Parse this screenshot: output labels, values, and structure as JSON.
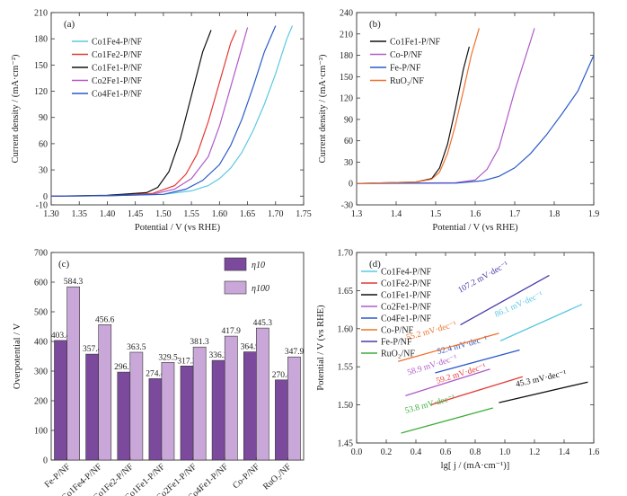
{
  "chart_data": [
    {
      "panel": "a",
      "type": "line",
      "panel_label": "(a)",
      "xlabel": "Potential / V (vs RHE)",
      "ylabel": "Current density / (mA·cm⁻²)",
      "xlim": [
        1.3,
        1.75
      ],
      "ylim": [
        -10,
        210
      ],
      "xticks": [
        "1.30",
        "1.35",
        "1.40",
        "1.45",
        "1.50",
        "1.55",
        "1.60",
        "1.65",
        "1.70",
        "1.75"
      ],
      "yticks": [
        "-10",
        "0",
        "30",
        "60",
        "90",
        "120",
        "150",
        "180",
        "210"
      ],
      "legend_position": "top-left",
      "series": [
        {
          "name": "Co1Fe4-P/NF",
          "color": "#5bc8e0",
          "x": [
            1.3,
            1.4,
            1.5,
            1.55,
            1.58,
            1.6,
            1.62,
            1.64,
            1.66,
            1.68,
            1.7,
            1.72,
            1.73
          ],
          "y": [
            0,
            0.5,
            2,
            6,
            12,
            20,
            32,
            50,
            75,
            105,
            140,
            180,
            195
          ]
        },
        {
          "name": "Co1Fe2-P/NF",
          "color": "#e53935",
          "x": [
            1.3,
            1.4,
            1.48,
            1.52,
            1.54,
            1.56,
            1.58,
            1.6,
            1.62,
            1.63
          ],
          "y": [
            0,
            0.5,
            3,
            12,
            25,
            48,
            85,
            130,
            175,
            190
          ]
        },
        {
          "name": "Co1Fe1-P/NF",
          "color": "#111111",
          "x": [
            1.3,
            1.4,
            1.47,
            1.49,
            1.51,
            1.53,
            1.55,
            1.57,
            1.585
          ],
          "y": [
            0,
            1,
            4,
            10,
            28,
            65,
            115,
            165,
            190
          ]
        },
        {
          "name": "Co2Fe1-P/NF",
          "color": "#b05ac8",
          "x": [
            1.3,
            1.4,
            1.48,
            1.52,
            1.55,
            1.58,
            1.6,
            1.62,
            1.64,
            1.65
          ],
          "y": [
            0,
            0.5,
            2,
            8,
            20,
            45,
            80,
            125,
            170,
            193
          ]
        },
        {
          "name": "Co4Fe1-P/NF",
          "color": "#2a5ac8",
          "x": [
            1.3,
            1.4,
            1.5,
            1.54,
            1.57,
            1.6,
            1.62,
            1.64,
            1.66,
            1.68,
            1.7
          ],
          "y": [
            0,
            0.5,
            2,
            8,
            18,
            36,
            58,
            88,
            125,
            165,
            195
          ]
        }
      ]
    },
    {
      "panel": "b",
      "type": "line",
      "panel_label": "(b)",
      "xlabel": "Potential / V (vs RHE)",
      "ylabel": "Current density / (mA·cm⁻²)",
      "xlim": [
        1.3,
        1.9
      ],
      "ylim": [
        -30,
        240
      ],
      "xticks": [
        "1.3",
        "1.4",
        "1.5",
        "1.6",
        "1.7",
        "1.8",
        "1.9"
      ],
      "yticks": [
        "-30",
        "0",
        "30",
        "60",
        "90",
        "120",
        "150",
        "180",
        "210",
        "240"
      ],
      "legend_position": "top-left",
      "series": [
        {
          "name": "Co1Fe1-P/NF",
          "color": "#111111",
          "x": [
            1.3,
            1.45,
            1.49,
            1.51,
            1.53,
            1.55,
            1.57,
            1.585
          ],
          "y": [
            0,
            2,
            7,
            22,
            55,
            105,
            160,
            192
          ]
        },
        {
          "name": "Co-P/NF",
          "color": "#b05ac8",
          "x": [
            1.3,
            1.55,
            1.6,
            1.63,
            1.66,
            1.68,
            1.7,
            1.72,
            1.74,
            1.75
          ],
          "y": [
            0,
            1,
            5,
            20,
            50,
            90,
            130,
            165,
            200,
            218
          ]
        },
        {
          "name": "Fe-P/NF",
          "color": "#2a5ac8",
          "x": [
            1.3,
            1.55,
            1.62,
            1.66,
            1.7,
            1.74,
            1.78,
            1.82,
            1.86,
            1.88,
            1.9
          ],
          "y": [
            0,
            0.5,
            4,
            10,
            22,
            42,
            68,
            98,
            130,
            155,
            180
          ]
        },
        {
          "name": "RuO₂/NF",
          "color": "#f0702a",
          "x": [
            1.3,
            1.45,
            1.49,
            1.51,
            1.53,
            1.55,
            1.57,
            1.59,
            1.61
          ],
          "y": [
            0,
            2,
            6,
            16,
            42,
            82,
            130,
            180,
            218
          ]
        }
      ]
    },
    {
      "panel": "c",
      "type": "bar",
      "panel_label": "(c)",
      "xlabel": "",
      "ylabel": "Overpotential / V",
      "ylim": [
        0,
        700
      ],
      "yticks": [
        "0",
        "100",
        "200",
        "300",
        "400",
        "500",
        "600",
        "700"
      ],
      "legend_position": "top-right",
      "categories": [
        "Fe-P/NF",
        "Co1Fe4-P/NF",
        "Co1Fe2-P/NF",
        "Co1Fe1-P/NF",
        "Co2Fe1-P/NF",
        "Co4Fe1-P/NF",
        "Co-P/NF",
        "RuO₂/NF"
      ],
      "series": [
        {
          "name": "η10",
          "color": "#7b4a9c",
          "values": [
            403.4,
            357.4,
            296.7,
            274.4,
            317.3,
            336.2,
            364.9,
            270.4
          ]
        },
        {
          "name": "η100",
          "color": "#c9a7d8",
          "values": [
            584.3,
            456.6,
            363.5,
            329.5,
            381.3,
            417.9,
            445.3,
            347.9
          ]
        }
      ],
      "data_labels": [
        [
          "403.4",
          "357.4",
          "296.7",
          "274.4",
          "317.3",
          "336.2",
          "364.9",
          "270.4"
        ],
        [
          "584.3",
          "456.6",
          "363.5",
          "329.5",
          "381.3",
          "417.9",
          "445.3",
          "347.9"
        ]
      ]
    },
    {
      "panel": "d",
      "type": "line",
      "panel_label": "(d)",
      "xlabel": "lg[ j / (mA·cm⁻¹)]",
      "ylabel": "Potential / V (vs RHE)",
      "xlim": [
        0.0,
        1.6
      ],
      "ylim": [
        1.45,
        1.7
      ],
      "xticks": [
        "0.0",
        "0.2",
        "0.4",
        "0.6",
        "0.8",
        "1.0",
        "1.2",
        "1.4",
        "1.6"
      ],
      "yticks": [
        "1.45",
        "1.50",
        "1.55",
        "1.60",
        "1.65",
        "1.70"
      ],
      "legend_position": "top-left",
      "series": [
        {
          "name": "Co1Fe4-P/NF",
          "color": "#5bc8e0",
          "x": [
            0.97,
            1.52
          ],
          "y": [
            1.584,
            1.632
          ],
          "slope_label": "86.1 mV·dec⁻¹"
        },
        {
          "name": "Co1Fe2-P/NF",
          "color": "#e53935",
          "x": [
            0.5,
            1.12
          ],
          "y": [
            1.5,
            1.537
          ],
          "slope_label": "59.2 mV·dec⁻¹"
        },
        {
          "name": "Co1Fe1-P/NF",
          "color": "#111111",
          "x": [
            0.96,
            1.56
          ],
          "y": [
            1.503,
            1.53
          ],
          "slope_label": "45.3 mV·dec⁻¹"
        },
        {
          "name": "Co2Fe1-P/NF",
          "color": "#b05ac8",
          "x": [
            0.33,
            0.9
          ],
          "y": [
            1.512,
            1.547
          ],
          "slope_label": "58.9 mV·dec⁻¹"
        },
        {
          "name": "Co4Fe1-P/NF",
          "color": "#2a5ac8",
          "x": [
            0.53,
            1.1
          ],
          "y": [
            1.542,
            1.572
          ],
          "slope_label": "52.4 mV·dec⁻¹"
        },
        {
          "name": "Co-P/NF",
          "color": "#f0702a",
          "x": [
            0.28,
            0.96
          ],
          "y": [
            1.557,
            1.594
          ],
          "slope_label": "55.2 mV·dec⁻¹"
        },
        {
          "name": "Fe-P/NF",
          "color": "#4a3aa8",
          "x": [
            0.7,
            1.3
          ],
          "y": [
            1.605,
            1.67
          ],
          "slope_label": "107.2 mV·dec⁻¹"
        },
        {
          "name": "RuO₂/NF",
          "color": "#3fae3a",
          "x": [
            0.3,
            0.92
          ],
          "y": [
            1.463,
            1.496
          ],
          "slope_label": "53.8 mV·dec⁻¹"
        }
      ]
    }
  ]
}
